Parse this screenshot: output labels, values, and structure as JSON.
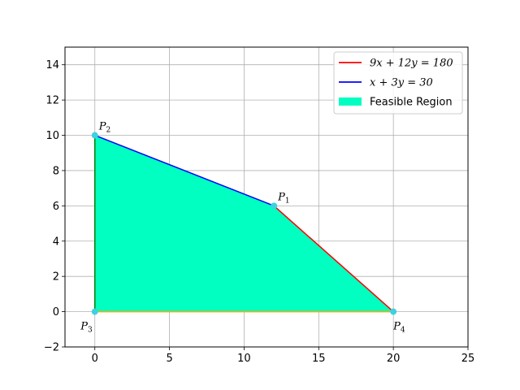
{
  "chart_data": {
    "type": "line",
    "title": "",
    "xlabel": "",
    "ylabel": "",
    "xlim": [
      -2,
      25
    ],
    "ylim": [
      -2,
      15
    ],
    "x_ticks": [
      0,
      5,
      10,
      15,
      20,
      25
    ],
    "y_ticks": [
      -2,
      0,
      2,
      4,
      6,
      8,
      10,
      12,
      14
    ],
    "grid": true,
    "legend_position": "top-right",
    "series": [
      {
        "name": "9x + 12y = 180",
        "color": "#ff0000",
        "points": [
          [
            12,
            6
          ],
          [
            20,
            0
          ]
        ]
      },
      {
        "name": "x + 3y = 30",
        "color": "#0000ff",
        "points": [
          [
            0,
            10
          ],
          [
            12,
            6
          ]
        ]
      }
    ],
    "boundary_segments": [
      {
        "color": "#008000",
        "points": [
          [
            0,
            0
          ],
          [
            0,
            10
          ]
        ]
      },
      {
        "color": "#ffa500",
        "points": [
          [
            0,
            0
          ],
          [
            20,
            0
          ]
        ]
      }
    ],
    "feasible_region": {
      "name": "Feasible Region",
      "color": "#00ffc0",
      "vertices": [
        [
          0,
          0
        ],
        [
          0,
          10
        ],
        [
          12,
          6
        ],
        [
          20,
          0
        ]
      ]
    },
    "points": [
      {
        "label": "P",
        "sub": "1",
        "x": 12,
        "y": 6,
        "anchor": "upper-right"
      },
      {
        "label": "P",
        "sub": "2",
        "x": 0,
        "y": 10,
        "anchor": "upper-right"
      },
      {
        "label": "P",
        "sub": "3",
        "x": 0,
        "y": 0,
        "anchor": "lower-left"
      },
      {
        "label": "P",
        "sub": "4",
        "x": 20,
        "y": 0,
        "anchor": "lower-right"
      }
    ],
    "point_color": "#40d0e0"
  }
}
